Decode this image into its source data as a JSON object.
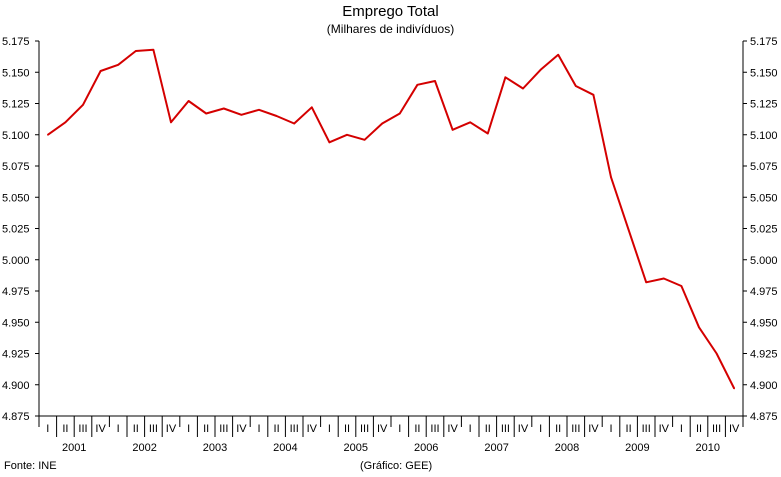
{
  "chart_data": {
    "type": "line",
    "title": "Emprego Total",
    "subtitle": "(Milhares de indivíduos)",
    "ylim": [
      4875,
      5175
    ],
    "yticks": [
      "5.175",
      "5.150",
      "5.125",
      "5.100",
      "5.075",
      "5.050",
      "5.025",
      "5.000",
      "4.975",
      "4.950",
      "4.925",
      "4.900",
      "4.875"
    ],
    "years": [
      "2001",
      "2002",
      "2003",
      "2004",
      "2005",
      "2006",
      "2007",
      "2008",
      "2009",
      "2010"
    ],
    "quarters": [
      "I",
      "II",
      "III",
      "IV"
    ],
    "series": [
      {
        "color": "#d40000",
        "values": [
          5100,
          5110,
          5124,
          5151,
          5156,
          5167,
          5168,
          5110,
          5127,
          5117,
          5121,
          5116,
          5120,
          5115,
          5109,
          5122,
          5094,
          5100,
          5096,
          5109,
          5117,
          5140,
          5143,
          5104,
          5110,
          5101,
          5146,
          5137,
          5152,
          5164,
          5139,
          5132,
          5066,
          5024,
          4982,
          4985,
          4979,
          4946,
          4925,
          4897
        ]
      }
    ],
    "grid": false,
    "secondary_y_axis": true
  },
  "footer": {
    "source": "Fonte: INE",
    "credit": "(Gráfico: GEE)"
  }
}
